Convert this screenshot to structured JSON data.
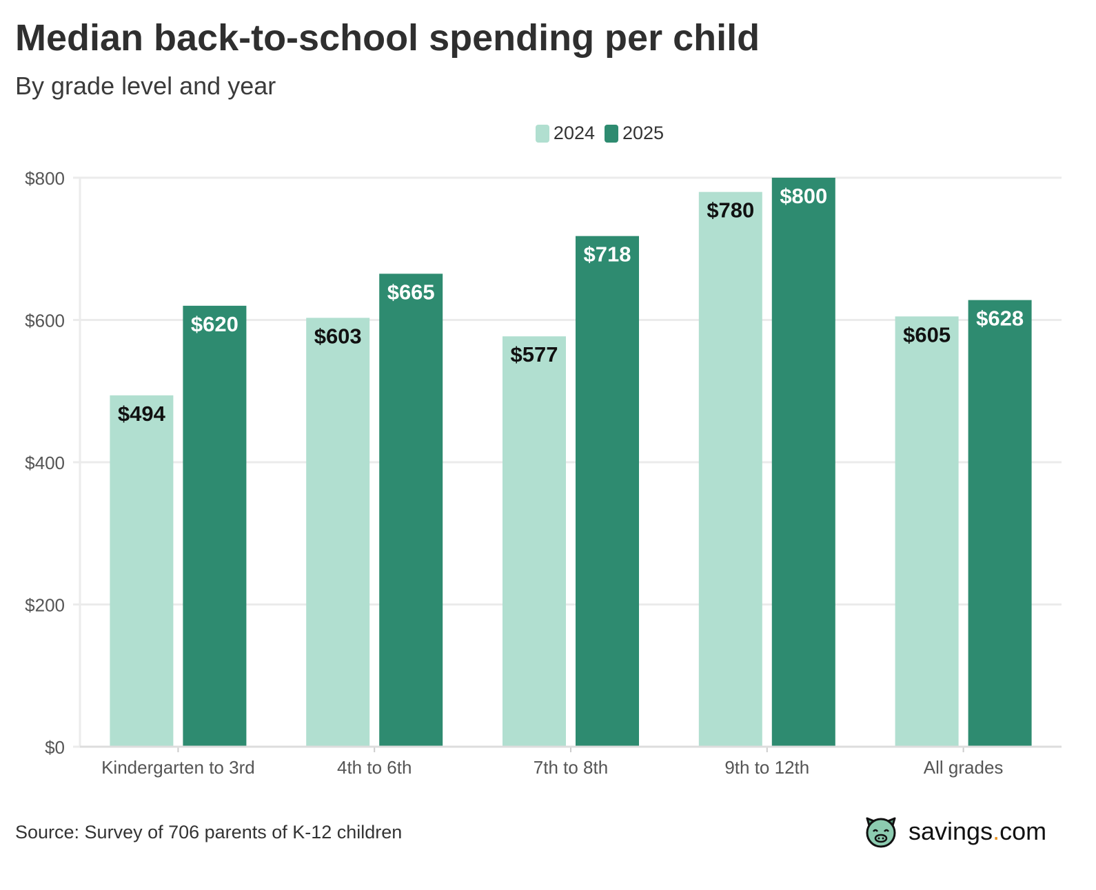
{
  "title": "Median back-to-school spending per child",
  "subtitle": "By grade level and year",
  "source": "Source: Survey of 706 parents of K-12 children",
  "logo": {
    "name": "savings",
    "dot": ".",
    "tld": "com",
    "icon": "pig-icon"
  },
  "colors": {
    "2024": "#b1dfd0",
    "2025": "#2e8b70",
    "grid": "#ebebeb",
    "logo_dot": "#e8901c"
  },
  "chart_data": {
    "type": "bar",
    "title": "Median back-to-school spending per child",
    "subtitle": "By grade level and year",
    "categories": [
      "Kindergarten to 3rd",
      "4th to 6th",
      "7th to 8th",
      "9th to 12th",
      "All grades"
    ],
    "series": [
      {
        "name": "2024",
        "values": [
          494,
          603,
          577,
          780,
          605
        ],
        "labels": [
          "$494",
          "$603",
          "$577",
          "$780",
          "$605"
        ]
      },
      {
        "name": "2025",
        "values": [
          620,
          665,
          718,
          800,
          628
        ],
        "labels": [
          "$620",
          "$665",
          "$718",
          "$800",
          "$628"
        ]
      }
    ],
    "yticks": [
      0,
      200,
      400,
      600,
      800
    ],
    "ytick_labels": [
      "$0",
      "$200",
      "$400",
      "$600",
      "$800"
    ],
    "ylim": [
      0,
      800
    ],
    "grid": true,
    "legend": "top-center"
  }
}
